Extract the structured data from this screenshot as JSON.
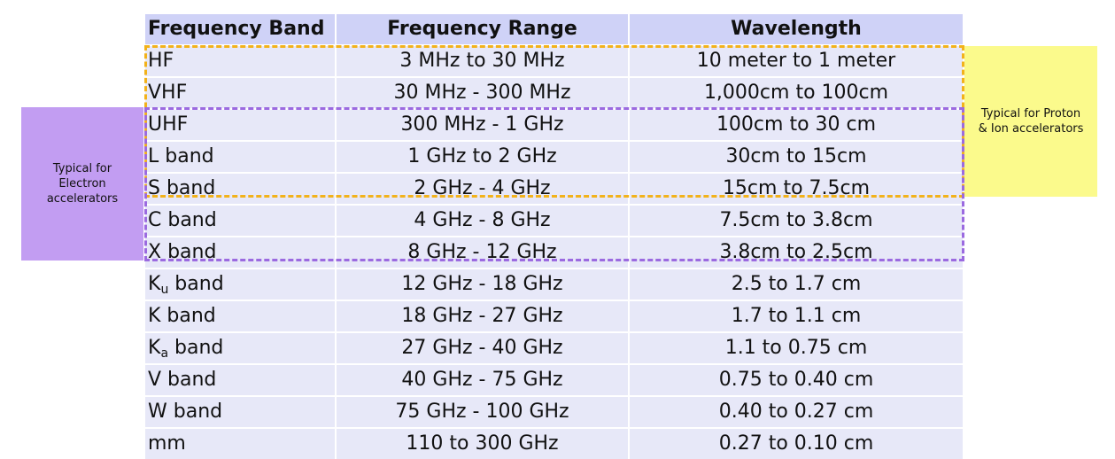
{
  "table": {
    "headers": [
      "Frequency Band",
      "Frequency Range",
      "Wavelength"
    ],
    "rows": [
      {
        "band": "HF",
        "range": "3 MHz to 30 MHz",
        "wavelength": "10 meter to 1 meter"
      },
      {
        "band": "VHF",
        "range": "30 MHz - 300 MHz",
        "wavelength": "1,000cm to 100cm"
      },
      {
        "band": "UHF",
        "range": "300 MHz - 1 GHz",
        "wavelength": "100cm to 30 cm"
      },
      {
        "band": "L band",
        "range": "1 GHz to 2 GHz",
        "wavelength": "30cm to 15cm"
      },
      {
        "band": "S band",
        "range": "2 GHz - 4 GHz",
        "wavelength": "15cm to 7.5cm"
      },
      {
        "band": "C band",
        "range": "4 GHz - 8 GHz",
        "wavelength": "7.5cm to 3.8cm"
      },
      {
        "band": "X band",
        "range": "8 GHz - 12 GHz",
        "wavelength": "3.8cm to 2.5cm"
      },
      {
        "band_main": "K",
        "band_sub": "u",
        "band_suffix": " band",
        "range": "12 GHz - 18 GHz",
        "wavelength": "2.5 to 1.7 cm"
      },
      {
        "band": "K band",
        "range": "18 GHz - 27 GHz",
        "wavelength": "1.7 to 1.1 cm"
      },
      {
        "band_main": "K",
        "band_sub": "a",
        "band_suffix": " band",
        "range": "27 GHz - 40 GHz",
        "wavelength": "1.1 to 0.75 cm"
      },
      {
        "band": "V band",
        "range": "40 GHz - 75 GHz",
        "wavelength": "0.75 to 0.40 cm"
      },
      {
        "band": "W band",
        "range": "75 GHz - 100 GHz",
        "wavelength": "0.40 to 0.27 cm"
      },
      {
        "band": "mm",
        "range": "110 to 300 GHz",
        "wavelength": "0.27 to 0.10 cm"
      }
    ]
  },
  "notes": {
    "electron": {
      "line1": "Typical for",
      "line2": "Electron",
      "line3": "accelerators"
    },
    "proton": {
      "line1": "Typical for Proton",
      "line2": "& Ion accelerators"
    }
  },
  "colors": {
    "header_bg": "#cfd2f7",
    "row_bg": "#e7e8f8",
    "electron_note_bg": "#c29df2",
    "proton_note_bg": "#fbfa8c",
    "orange_dash": "#f2b21b",
    "purple_dash": "#9b6ae0"
  }
}
